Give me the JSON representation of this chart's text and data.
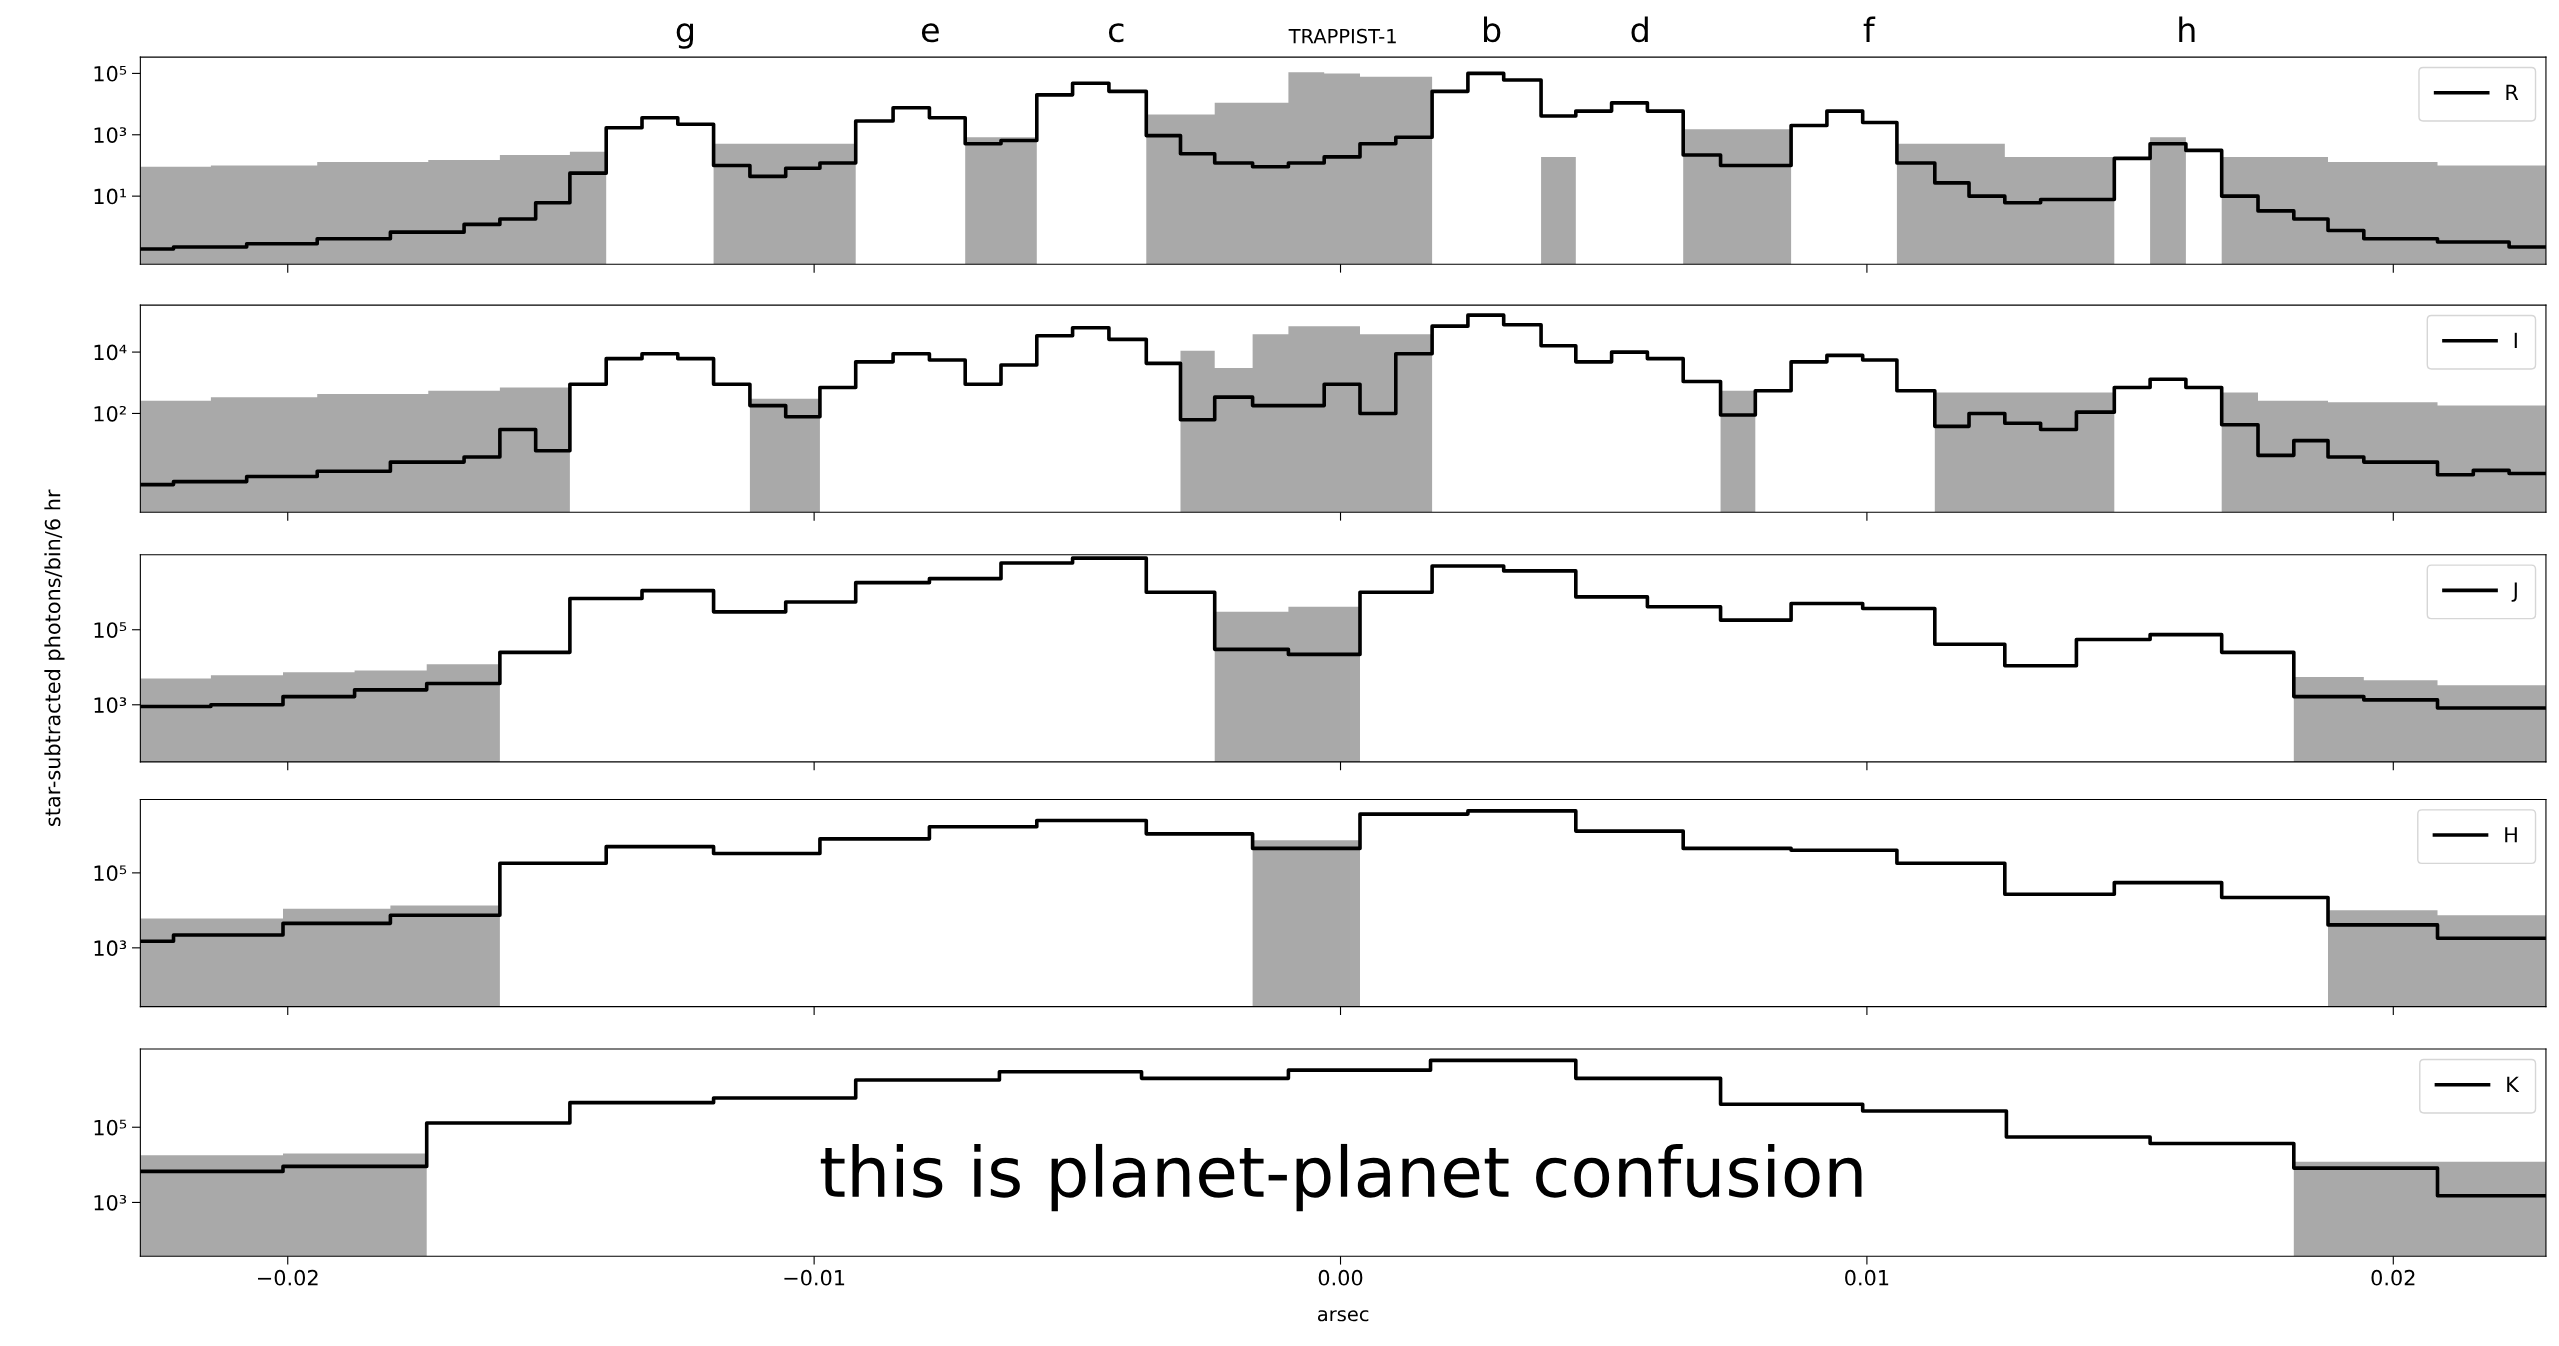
{
  "chart_data": [
    {
      "type": "step",
      "title": "TRAPPIST-1",
      "log": true,
      "legend": "top right",
      "tick_labels": "y",
      "xlim": [
        -0.0228,
        0.0229
      ],
      "ylim": [
        0.06,
        340000
      ],
      "xticks": [
        {
          "value": -0.02,
          "label": null
        },
        {
          "value": -0.01,
          "label": null
        },
        {
          "value": 0.0,
          "label": null
        },
        {
          "value": 0.01,
          "label": null
        },
        {
          "value": 0.02,
          "label": null
        }
      ],
      "yticks": [
        {
          "value": 10,
          "label": "10¹"
        },
        {
          "value": 1000,
          "label": "10³"
        },
        {
          "value": 100000,
          "label": "10⁵"
        }
      ],
      "annotations": [
        "g",
        "e",
        "c",
        "b",
        "d",
        "f",
        "h"
      ],
      "series": [
        {
          "type": "area",
          "color": "#a9a9a9",
          "x": [
            -0.0228,
            -0.02146,
            -0.01944,
            -0.01733,
            -0.01597,
            -0.01464,
            -0.01395,
            -0.01191,
            -0.00921,
            -0.00713,
            -0.00577,
            -0.00369,
            -0.00239,
            -0.00099,
            -0.00031,
            0.00037,
            0.00174,
            0.00381,
            0.00447,
            0.00651,
            0.00856,
            0.01057,
            0.01262,
            0.0147,
            0.01538,
            0.01606,
            0.01674,
            0.01876,
            0.02084,
            0.0229
          ],
          "values": [
            91,
            100,
            130,
            150,
            220,
            280,
            null,
            510,
            null,
            830,
            null,
            4600,
            11000,
            110000,
            100000,
            78000,
            null,
            190,
            null,
            1500,
            null,
            510,
            190,
            null,
            830,
            null,
            190,
            130,
            100,
            100
          ]
        },
        {
          "name": "R",
          "color": "#000000",
          "x": [
            -0.0228,
            -0.02217,
            -0.02078,
            -0.01944,
            -0.01805,
            -0.01665,
            -0.01597,
            -0.01529,
            -0.01464,
            -0.01395,
            -0.01327,
            -0.01259,
            -0.01191,
            -0.01122,
            -0.01054,
            -0.00989,
            -0.00921,
            -0.0085,
            -0.00781,
            -0.00713,
            -0.00645,
            -0.00577,
            -0.00509,
            -0.0044,
            -0.00369,
            -0.00304,
            -0.00239,
            -0.00167,
            -0.00099,
            -0.00031,
            0.00037,
            0.00105,
            0.00174,
            0.00242,
            0.0031,
            0.00381,
            0.00447,
            0.00515,
            0.00583,
            0.00651,
            0.00722,
            0.00856,
            0.00924,
            0.00992,
            0.01057,
            0.01129,
            0.01194,
            0.01262,
            0.0133,
            0.0147,
            0.01538,
            0.01606,
            0.01674,
            0.01743,
            0.01811,
            0.01876,
            0.01944,
            0.02084,
            0.0222,
            0.0229
          ],
          "values": [
            0.19,
            0.22,
            0.28,
            0.41,
            0.67,
            1.2,
            1.8,
            6.1,
            56,
            1700,
            3600,
            2200,
            100,
            44,
            81,
            120,
            2800,
            7600,
            3600,
            510,
            650,
            20000,
            48000,
            26000,
            940,
            240,
            120,
            91,
            120,
            190,
            510,
            830,
            26000,
            100000,
            61000,
            4100,
            5900,
            11000,
            5900,
            220,
            100,
            2000,
            5900,
            2500,
            120,
            27,
            10,
            6.1,
            7.8,
            170,
            510,
            310,
            10,
            3.3,
            1.8,
            0.76,
            0.41,
            0.32,
            0.22,
            0.22
          ]
        }
      ]
    },
    {
      "type": "step",
      "log": true,
      "legend": "top right",
      "tick_labels": "y",
      "xlim": [
        -0.0228,
        0.0229
      ],
      "ylim": [
        0.06,
        340000
      ],
      "xticks": [
        {
          "value": -0.02,
          "label": null
        },
        {
          "value": -0.01,
          "label": null
        },
        {
          "value": 0.0,
          "label": null
        },
        {
          "value": 0.01,
          "label": null
        },
        {
          "value": 0.02,
          "label": null
        }
      ],
      "yticks": [
        {
          "value": 100,
          "label": "10²"
        },
        {
          "value": 10000,
          "label": "10⁴"
        }
      ],
      "series": [
        {
          "type": "area",
          "color": "#a9a9a9",
          "x": [
            -0.0228,
            -0.02146,
            -0.01944,
            -0.01733,
            -0.01597,
            -0.01464,
            -0.01122,
            -0.00989,
            -0.00304,
            -0.00239,
            -0.00167,
            -0.00099,
            0.00037,
            0.00174,
            0.00722,
            0.00788,
            0.01129,
            0.0147,
            0.01674,
            0.01743,
            0.01876,
            0.02084,
            0.0229
          ],
          "values": [
            260,
            340,
            430,
            550,
            700,
            null,
            300,
            null,
            11000,
            3000,
            38000,
            70000,
            38000,
            null,
            550,
            null,
            480,
            null,
            480,
            260,
            230,
            180,
            180
          ]
        },
        {
          "name": "I",
          "color": "#000000",
          "x": [
            -0.0228,
            -0.02217,
            -0.02078,
            -0.01944,
            -0.01805,
            -0.01665,
            -0.01597,
            -0.01529,
            -0.01464,
            -0.01395,
            -0.01327,
            -0.01259,
            -0.01191,
            -0.01122,
            -0.01054,
            -0.00989,
            -0.00921,
            -0.0085,
            -0.00781,
            -0.00713,
            -0.00645,
            -0.00577,
            -0.00509,
            -0.0044,
            -0.00369,
            -0.00304,
            -0.00239,
            -0.00167,
            -0.00099,
            -0.00031,
            0.00037,
            0.00105,
            0.00174,
            0.00242,
            0.0031,
            0.00381,
            0.00447,
            0.00515,
            0.00583,
            0.00651,
            0.00722,
            0.00788,
            0.00856,
            0.00924,
            0.00992,
            0.01057,
            0.01129,
            0.01194,
            0.01262,
            0.0133,
            0.01398,
            0.0147,
            0.01538,
            0.01606,
            0.01674,
            0.01743,
            0.01811,
            0.01876,
            0.01944,
            0.02084,
            0.02152,
            0.0222,
            0.0229
          ],
          "values": [
            0.48,
            0.6,
            0.88,
            1.3,
            2.6,
            3.8,
            30,
            6.1,
            890,
            6100,
            8800,
            6100,
            890,
            180,
            78,
            700,
            4800,
            8800,
            5500,
            890,
            3800,
            34000,
            62000,
            26000,
            4300,
            62,
            340,
            180,
            180,
            890,
            100,
            8800,
            70000,
            160000,
            78000,
            16000,
            4800,
            10000,
            6100,
            1100,
            89,
            550,
            4800,
            7800,
            5500,
            550,
            38,
            100,
            48,
            30,
            110,
            700,
            1300,
            700,
            43,
            4.3,
            13,
            3.8,
            2.6,
            1.0,
            1.4,
            1.1,
            1.1
          ]
        }
      ]
    },
    {
      "type": "step",
      "log": true,
      "legend": "top right",
      "tick_labels": "y",
      "ylabel": "star-subtracted photons/bin/6 hr",
      "xlim": [
        -0.0228,
        0.0229
      ],
      "ylim": [
        30,
        10000000
      ],
      "xticks": [
        {
          "value": -0.02,
          "label": null
        },
        {
          "value": -0.01,
          "label": null
        },
        {
          "value": 0.0,
          "label": null
        },
        {
          "value": 0.01,
          "label": null
        },
        {
          "value": 0.02,
          "label": null
        }
      ],
      "yticks": [
        {
          "value": 1000,
          "label": "10³"
        },
        {
          "value": 100000,
          "label": "10⁵"
        }
      ],
      "series": [
        {
          "type": "area",
          "color": "#a9a9a9",
          "x": [
            -0.0228,
            -0.02146,
            -0.02009,
            -0.01873,
            -0.01736,
            -0.01597,
            -0.00239,
            -0.00099,
            0.00037,
            0.01811,
            0.01944,
            0.02084,
            0.0229
          ],
          "values": [
            5000,
            6100,
            7400,
            8200,
            12000,
            null,
            300000,
            410000,
            null,
            5500,
            4500,
            3300,
            3300
          ]
        },
        {
          "name": "J",
          "color": "#000000",
          "x": [
            -0.0228,
            -0.02146,
            -0.02009,
            -0.01873,
            -0.01736,
            -0.01597,
            -0.01464,
            -0.01327,
            -0.01191,
            -0.01054,
            -0.00921,
            -0.00781,
            -0.00645,
            -0.00509,
            -0.00369,
            -0.00239,
            -0.00099,
            0.00037,
            0.00174,
            0.0031,
            0.00447,
            0.00583,
            0.00722,
            0.00856,
            0.00992,
            0.01129,
            0.01262,
            0.01398,
            0.01538,
            0.01674,
            0.01811,
            0.01944,
            0.02084,
            0.0229
          ],
          "values": [
            900,
            1000,
            1650,
            2500,
            3700,
            25000,
            680000,
            1100000,
            300000,
            550000,
            1800000,
            2300000,
            6000000,
            8100000,
            1000000,
            30000,
            22000,
            1000000,
            5000000,
            3700000,
            750000,
            410000,
            180000,
            500000,
            370000,
            41000,
            11000,
            55000,
            74000,
            25000,
            1650,
            1350,
            820,
            820
          ]
        }
      ]
    },
    {
      "type": "step",
      "log": true,
      "legend": "top right",
      "tick_labels": "y",
      "xlim": [
        -0.0228,
        0.0229
      ],
      "ylim": [
        27,
        9100000
      ],
      "xticks": [
        {
          "value": -0.02,
          "label": null
        },
        {
          "value": -0.01,
          "label": null
        },
        {
          "value": 0.0,
          "label": null
        },
        {
          "value": 0.01,
          "label": null
        },
        {
          "value": 0.02,
          "label": null
        }
      ],
      "yticks": [
        {
          "value": 1000,
          "label": "10³"
        },
        {
          "value": 100000,
          "label": "10⁵"
        }
      ],
      "series": [
        {
          "type": "area",
          "color": "#a9a9a9",
          "x": [
            -0.0228,
            -0.02009,
            -0.01805,
            -0.01597,
            -0.00167,
            0.00037,
            0.01876,
            0.02084,
            0.0229
          ],
          "values": [
            6100,
            11000,
            13500,
            null,
            740000,
            null,
            10000,
            7400,
            7400
          ]
        },
        {
          "name": "H",
          "color": "#000000",
          "x": [
            -0.0228,
            -0.02217,
            -0.02009,
            -0.01805,
            -0.01597,
            -0.01395,
            -0.01191,
            -0.00989,
            -0.00781,
            -0.00577,
            -0.00369,
            -0.00167,
            0.00037,
            0.00242,
            0.00447,
            0.00651,
            0.00856,
            0.01057,
            0.01262,
            0.0147,
            0.01674,
            0.01876,
            0.02084,
            0.0229
          ],
          "values": [
            1500,
            2200,
            4500,
            7400,
            180000,
            500000,
            330000,
            810000,
            1700000,
            2500000,
            1100000,
            450000,
            3700000,
            4500000,
            1300000,
            450000,
            400000,
            180000,
            27000,
            55000,
            22000,
            4100,
            1800,
            1800
          ]
        }
      ]
    },
    {
      "type": "step",
      "log": true,
      "legend": "top right",
      "xlabel": "arsec",
      "xlim": [
        -0.0228,
        0.0229
      ],
      "ylim": [
        37,
        12000000
      ],
      "xticks": [
        {
          "value": -0.02,
          "label": "−0.02"
        },
        {
          "value": -0.01,
          "label": "−0.01"
        },
        {
          "value": 0.0,
          "label": "0.00"
        },
        {
          "value": 0.01,
          "label": "0.01"
        },
        {
          "value": 0.02,
          "label": "0.02"
        }
      ],
      "yticks": [
        {
          "value": 1000,
          "label": "10³"
        },
        {
          "value": 100000,
          "label": "10⁵"
        }
      ],
      "annotations": [
        "this is planet-planet confusion"
      ],
      "series": [
        {
          "type": "area",
          "color": "#a9a9a9",
          "x": [
            -0.0228,
            -0.02009,
            -0.01736,
            0.01811,
            0.02084,
            0.0229
          ],
          "values": [
            18000,
            20000,
            null,
            12000,
            12000,
            12000
          ]
        },
        {
          "name": "K",
          "color": "#000000",
          "x": [
            -0.0228,
            -0.02009,
            -0.01736,
            -0.01464,
            -0.01191,
            -0.00921,
            -0.00648,
            -0.00378,
            -0.00099,
            0.00171,
            0.00447,
            0.00722,
            0.00992,
            0.01265,
            0.01538,
            0.01811,
            0.02084,
            0.0229
          ],
          "values": [
            6700,
            9100,
            130000,
            450000,
            600000,
            1800000,
            3000000,
            2000000,
            3300000,
            6000000,
            2000000,
            410000,
            270000,
            55000,
            37000,
            8200,
            1500,
            1500
          ]
        }
      ]
    }
  ]
}
